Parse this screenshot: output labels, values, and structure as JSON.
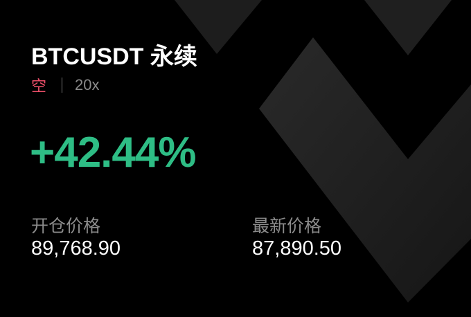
{
  "card": {
    "title": "BTCUSDT 永续",
    "side": "空",
    "leverage": "20x",
    "pnl_percent": "+42.44%",
    "entry_price_label": "开仓价格",
    "entry_price": "89,768.90",
    "last_price_label": "最新价格",
    "last_price": "87,890.50"
  },
  "colors": {
    "background": "#000000",
    "profit": "#2ebd85",
    "short": "#f0506a",
    "muted": "#8b8b8b"
  }
}
